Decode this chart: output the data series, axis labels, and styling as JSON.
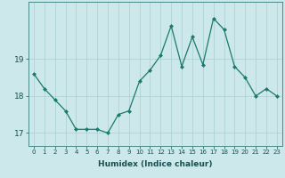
{
  "x": [
    0,
    1,
    2,
    3,
    4,
    5,
    6,
    7,
    8,
    9,
    10,
    11,
    12,
    13,
    14,
    15,
    16,
    17,
    18,
    19,
    20,
    21,
    22,
    23
  ],
  "y": [
    18.6,
    18.2,
    17.9,
    17.6,
    17.1,
    17.1,
    17.1,
    17.0,
    17.5,
    17.6,
    18.4,
    18.7,
    19.1,
    19.9,
    18.8,
    19.6,
    18.85,
    20.1,
    19.8,
    18.8,
    18.5,
    18.0,
    18.2,
    18.0
  ],
  "xlabel": "Humidex (Indice chaleur)",
  "xlim": [
    -0.5,
    23.5
  ],
  "ylim": [
    16.65,
    20.55
  ],
  "yticks": [
    17,
    18,
    19
  ],
  "xticks": [
    0,
    1,
    2,
    3,
    4,
    5,
    6,
    7,
    8,
    9,
    10,
    11,
    12,
    13,
    14,
    15,
    16,
    17,
    18,
    19,
    20,
    21,
    22,
    23
  ],
  "line_color": "#1a7a6e",
  "marker": "D",
  "marker_size": 2.0,
  "bg_color": "#cce8ea",
  "grid_color": "#aacfd2",
  "axis_color": "#4a8a8a",
  "label_color": "#1a5050",
  "tick_color": "#1a5050",
  "xlabel_fontsize": 6.5,
  "xtick_fontsize": 5.0,
  "ytick_fontsize": 6.5
}
